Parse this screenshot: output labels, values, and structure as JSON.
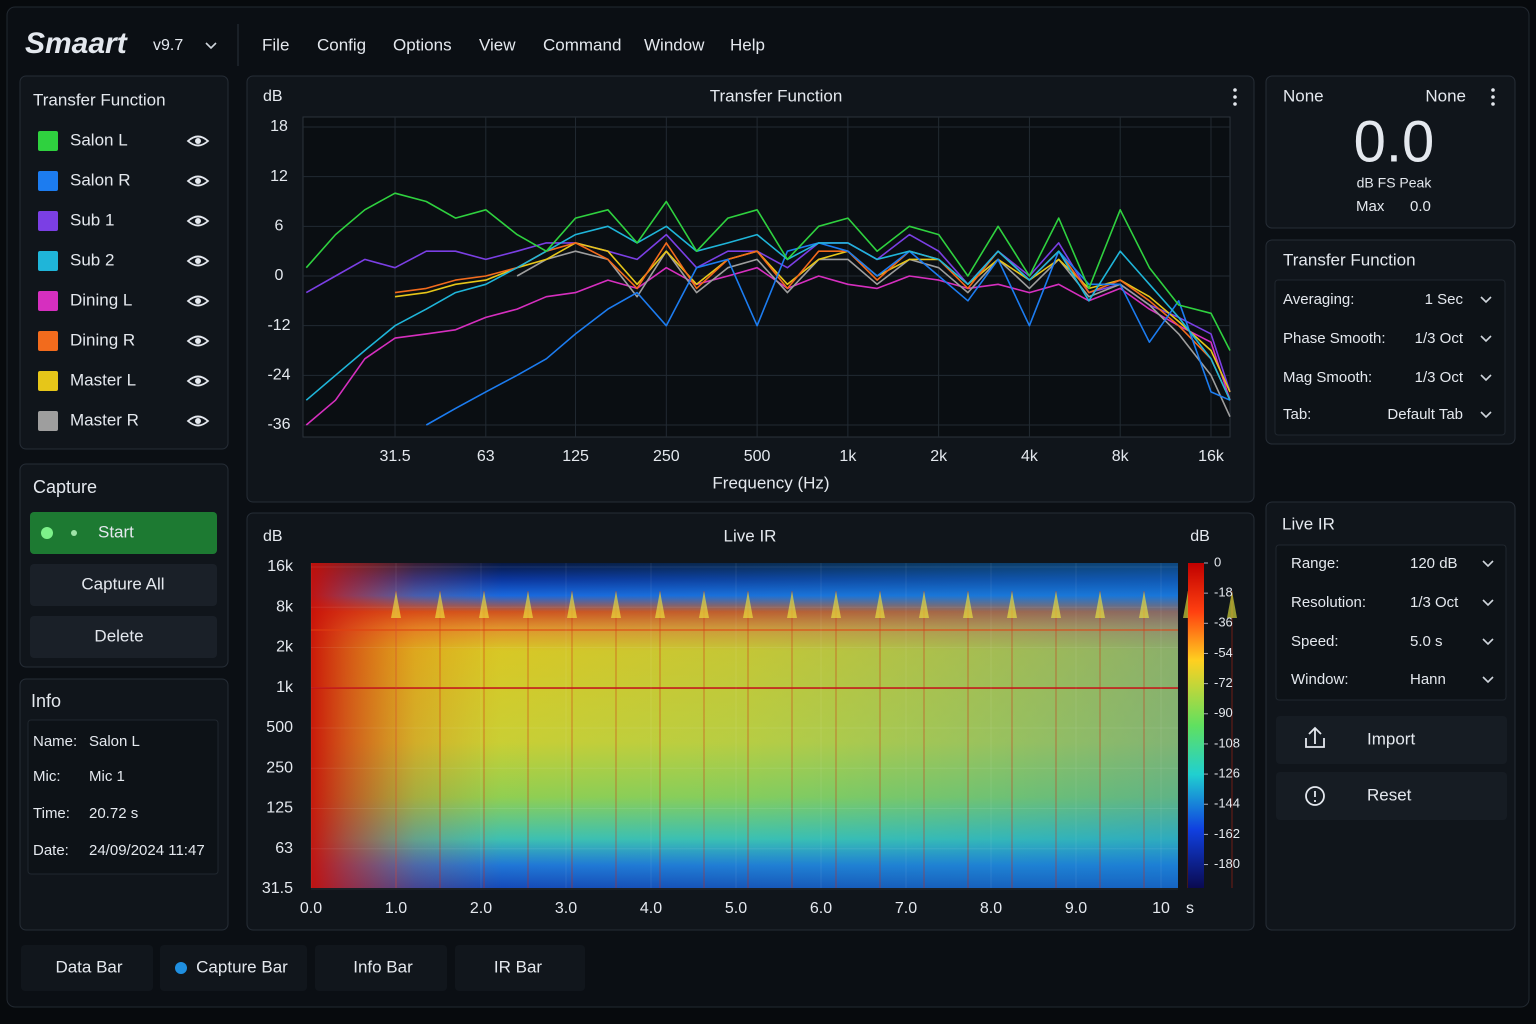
{
  "app": {
    "name": "Smaart",
    "version": "v9.7"
  },
  "menu": [
    "File",
    "Config",
    "Options",
    "View",
    "Command",
    "Window",
    "Help"
  ],
  "sidebar": {
    "title": "Transfer Function",
    "capture": {
      "title": "Capture",
      "start": "Start",
      "capture_all": "Capture All",
      "delete": "Delete"
    },
    "info": {
      "title": "Info",
      "rows": [
        [
          "Name:",
          "Salon L"
        ],
        [
          "Mic:",
          "Mic 1"
        ],
        [
          "Time:",
          "20.72 s"
        ],
        [
          "Date:",
          "24/09/2024 11:47"
        ]
      ]
    }
  },
  "meter": {
    "left": "None",
    "right": "None",
    "value": "0.0",
    "unit": "dB FS Peak",
    "max_label": "Max",
    "max_value": "0.0"
  },
  "tf_settings": {
    "title": "Transfer Function",
    "rows": [
      [
        "Averaging:",
        "1 Sec"
      ],
      [
        "Phase Smooth:",
        "1/3 Oct"
      ],
      [
        "Mag Smooth:",
        "1/3 Oct"
      ],
      [
        "Tab:",
        "Default Tab"
      ]
    ]
  },
  "ir_settings": {
    "title": "Live IR",
    "rows": [
      [
        "Range:",
        "120 dB"
      ],
      [
        "Resolution:",
        "1/3 Oct"
      ],
      [
        "Speed:",
        "5.0 s"
      ],
      [
        "Window:",
        "Hann"
      ]
    ],
    "import": "Import",
    "reset": "Reset"
  },
  "tabs": [
    "Data Bar",
    "Capture Bar",
    "Info Bar",
    "IR Bar"
  ],
  "chart_data": [
    {
      "type": "line",
      "title": "Transfer Function",
      "y_unit": "dB",
      "xlabel": "Frequency (Hz)",
      "log_x": true,
      "grid": true,
      "x": [
        16,
        20,
        25,
        31.5,
        40,
        50,
        63,
        80,
        100,
        125,
        160,
        200,
        250,
        315,
        400,
        500,
        630,
        800,
        1000,
        1250,
        1600,
        2000,
        2500,
        3150,
        4000,
        5000,
        6300,
        8000,
        10000,
        12500,
        16000,
        18500
      ],
      "xlim": [
        15.6,
        18500
      ],
      "xticks": [
        31.5,
        63,
        125,
        250,
        500,
        {
          "value": 1000,
          "label": "1k"
        },
        {
          "value": 2000,
          "label": "2k"
        },
        {
          "value": 4000,
          "label": "4k"
        },
        {
          "value": 8000,
          "label": "8k"
        },
        {
          "value": 16000,
          "label": "16k"
        }
      ],
      "ylim": [
        -38,
        19
      ],
      "yticks": [
        18,
        12,
        6,
        0,
        -12,
        -24,
        -36
      ],
      "series": [
        {
          "name": "Salon L",
          "color": "#2fd13f",
          "values": [
            1,
            5,
            8,
            10,
            9,
            7,
            8,
            5,
            3,
            7,
            8,
            4,
            9,
            3,
            7,
            8,
            2,
            6,
            7,
            3,
            6,
            5,
            0,
            6,
            0,
            7,
            -3,
            8,
            1,
            -7,
            -9,
            -18
          ]
        },
        {
          "name": "Salon R",
          "color": "#1c7cf0",
          "values": [
            null,
            null,
            null,
            null,
            -36,
            -32,
            -28,
            -24,
            -20,
            -14,
            -8,
            -4,
            -12,
            1,
            2,
            -12,
            3,
            4,
            3,
            0,
            3,
            0,
            -6,
            2,
            -12,
            3,
            -2,
            -2,
            -16,
            -6,
            -28,
            -30
          ]
        },
        {
          "name": "Sub 1",
          "color": "#7b3fe4",
          "values": [
            -4,
            0,
            2,
            1,
            3,
            3,
            2,
            3,
            4,
            4,
            3,
            2,
            5,
            1,
            3,
            3,
            1,
            4,
            4,
            2,
            5,
            3,
            -2,
            3,
            0,
            4,
            -4,
            -2,
            -7,
            -10,
            -14,
            -28
          ]
        },
        {
          "name": "Sub 2",
          "color": "#1fb5d9",
          "values": [
            -30,
            -24,
            -18,
            -12,
            -8,
            -4,
            -2,
            1,
            3,
            5,
            6,
            4,
            6,
            3,
            4,
            5,
            2,
            4,
            4,
            2,
            3,
            2,
            -2,
            3,
            -1,
            3,
            -6,
            3,
            -2,
            -10,
            -20,
            -30
          ]
        },
        {
          "name": "Dining L",
          "color": "#d62fbf",
          "values": [
            -36,
            -30,
            -20,
            -15,
            -14,
            -13,
            -10,
            -8,
            -5,
            -4,
            -1,
            -3,
            1,
            -2,
            0,
            1,
            -3,
            0,
            -2,
            -3,
            0,
            -1,
            -3,
            -2,
            -4,
            -2,
            -6,
            -3,
            -8,
            -12,
            -16,
            -30
          ]
        },
        {
          "name": "Dining R",
          "color": "#f26b1d",
          "values": [
            null,
            null,
            null,
            -4,
            -3,
            -1,
            0,
            1,
            3,
            4,
            2,
            -3,
            4,
            -3,
            2,
            3,
            -3,
            3,
            3,
            -1,
            3,
            2,
            -3,
            3,
            -1,
            3,
            -4,
            -1,
            -6,
            -12,
            -20,
            -30
          ]
        },
        {
          "name": "Master L",
          "color": "#e6c619",
          "values": [
            null,
            null,
            null,
            -5,
            -4,
            -2,
            -1,
            1,
            2,
            4,
            3,
            -2,
            3,
            -2,
            2,
            3,
            -2,
            2,
            3,
            0,
            2,
            2,
            -2,
            2,
            -1,
            2,
            -3,
            -1,
            -5,
            -11,
            -18,
            -28
          ]
        },
        {
          "name": "Master R",
          "color": "#9e9e9e",
          "values": [
            null,
            null,
            null,
            null,
            null,
            null,
            null,
            0,
            2,
            3,
            2,
            -5,
            3,
            -4,
            1,
            2,
            -4,
            2,
            2,
            -2,
            2,
            1,
            -4,
            2,
            -3,
            2,
            -5,
            -2,
            -7,
            -14,
            -24,
            -34
          ]
        }
      ]
    },
    {
      "type": "spectrogram",
      "title": "Live IR",
      "y_unit": "dB",
      "colorbar_unit": "dB",
      "x_unit": "s",
      "grid": true,
      "xlim": [
        0,
        10.2
      ],
      "xticks": [
        {
          "value": 0,
          "label": "0.0"
        },
        {
          "value": 1,
          "label": "1.0"
        },
        {
          "value": 2,
          "label": "2.0"
        },
        {
          "value": 3,
          "label": "3.0"
        },
        {
          "value": 4,
          "label": "4.0"
        },
        {
          "value": 5,
          "label": "5.0"
        },
        {
          "value": 6,
          "label": "6.0"
        },
        {
          "value": 7,
          "label": "7.0"
        },
        {
          "value": 8,
          "label": "8.0"
        },
        {
          "value": 9,
          "label": "9.0"
        },
        10
      ],
      "ylim": [
        31.5,
        16000
      ],
      "yticks": [
        {
          "value": 16000,
          "label": "16k"
        },
        {
          "value": 8000,
          "label": "8k"
        },
        {
          "value": 2000,
          "label": "2k"
        },
        {
          "value": 1000,
          "label": "1k"
        },
        500,
        250,
        125,
        63,
        31.5
      ],
      "clim": [
        -194,
        0
      ],
      "cticks": [
        0,
        -18,
        -36,
        -54,
        -72,
        -90,
        -108,
        -126,
        -144,
        -162,
        -180
      ]
    }
  ]
}
